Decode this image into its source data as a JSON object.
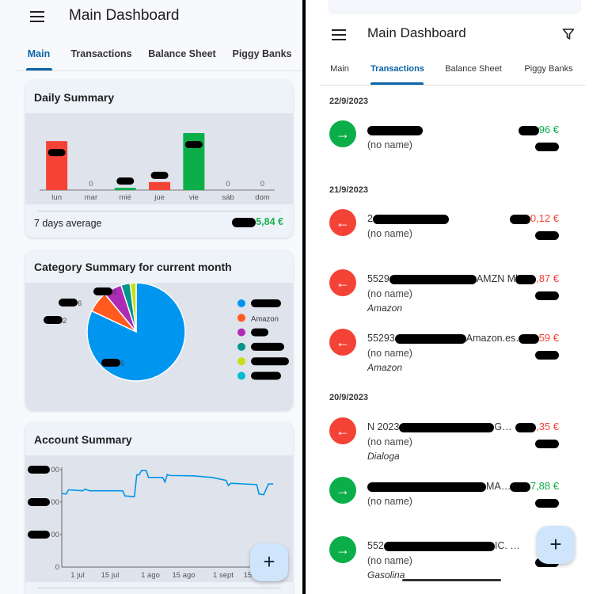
{
  "left": {
    "header": {
      "title": "Main Dashboard",
      "menu_icon": "hamburger-icon"
    },
    "tabs": [
      {
        "label": "Main",
        "active": true
      },
      {
        "label": "Transactions"
      },
      {
        "label": "Balance Sheet"
      },
      {
        "label": "Piggy Banks"
      }
    ],
    "daily_summary": {
      "title": "Daily Summary",
      "footer_label": "7 days average",
      "footer_value_visible": "5,84 €",
      "footer_color": "#1db34f"
    },
    "category_summary": {
      "title": "Category Summary for current month"
    },
    "account_summary": {
      "title": "Account Summary"
    },
    "fab_icon": "plus-icon"
  },
  "right": {
    "header": {
      "title": "Main Dashboard",
      "menu_icon": "hamburger-icon",
      "filter_icon": "filter-icon"
    },
    "tabs": [
      {
        "label": "Main"
      },
      {
        "label": "Transactions",
        "active": true
      },
      {
        "label": "Balance Sheet"
      },
      {
        "label": "Piggy Banks"
      }
    ],
    "groups": [
      {
        "date": "22/9/2023",
        "items": [
          {
            "type": "income",
            "title": "",
            "title_end": "",
            "subtitle": "(no name)",
            "amount": "96 €",
            "category": ""
          }
        ]
      },
      {
        "date": "21/9/2023",
        "items": [
          {
            "type": "expense",
            "title": "2",
            "title_end": "",
            "subtitle": "(no name)",
            "amount": "0,12 €",
            "category": ""
          },
          {
            "type": "expense",
            "title": "5529",
            "title_end": "AMZN Mk…",
            "subtitle": "(no name)",
            "amount": ",87 €",
            "category": "Amazon"
          },
          {
            "type": "expense",
            "title": "55293",
            "title_end": "Amazon.es…",
            "subtitle": "(no name)",
            "amount": "59 €",
            "category": "Amazon"
          }
        ]
      },
      {
        "date": "20/9/2023",
        "items": [
          {
            "type": "expense",
            "title": "N 2023",
            "title_end": "G…",
            "subtitle": "(no name)",
            "amount": ",35 €",
            "category": "Dialoga"
          },
          {
            "type": "income",
            "title": "",
            "title_end": "MA…",
            "subtitle": "(no name)",
            "amount": "7,88 €",
            "category": ""
          },
          {
            "type": "income",
            "title": "552",
            "title_end": "IC. …",
            "subtitle": "(no name)",
            "amount": "",
            "category": "Gasolina"
          }
        ]
      }
    ],
    "colors": {
      "income": "#0cae4a",
      "expense": "#f44336"
    },
    "fab_icon": "plus-icon"
  },
  "chart_data": [
    {
      "type": "bar",
      "title": "Daily Summary",
      "categories": [
        "lun",
        "mar",
        "mié",
        "jue",
        "vie",
        "sáb",
        "dom"
      ],
      "value_labels": [
        "",
        "0",
        "",
        "",
        "",
        "0",
        "0"
      ],
      "level_of_max": [
        0.86,
        0,
        0.04,
        0.14,
        1.0,
        0,
        0
      ],
      "colors": [
        "#f44336",
        "#f44336",
        "#0cae4a",
        "#f44336",
        "#0cae4a",
        "#f44336",
        "#f44336"
      ]
    },
    {
      "type": "pie",
      "title": "Category Summary for current month",
      "slices": [
        {
          "name": "",
          "percent": 82,
          "label": "5",
          "color": "#0096f0"
        },
        {
          "name": "Amazon",
          "percent": 7,
          "label": "2",
          "color": "#ff5a1f"
        },
        {
          "name": "",
          "percent": 6,
          "label": "6",
          "color": "#b02ab8"
        },
        {
          "name": "",
          "percent": 3,
          "label": "",
          "color": "#00968a"
        },
        {
          "name": "",
          "percent": 2,
          "label": "4",
          "color": "#c8dd18"
        },
        {
          "name": "",
          "percent": 0,
          "label": "",
          "color": "#00bcd4"
        }
      ],
      "legend": "right"
    },
    {
      "type": "line",
      "title": "Account Summary",
      "color": "#0096e6",
      "x_ticks": [
        "1 jul",
        "15 jul",
        "1 ago",
        "15 ago",
        "1 sept",
        "15"
      ],
      "y_ticks": [
        "0",
        "00",
        "00",
        "00"
      ],
      "y_unit": "gridline levels (values redacted)",
      "points": [
        [
          "2023-06-24",
          2.27
        ],
        [
          "2023-06-26",
          2.25
        ],
        [
          "2023-06-27",
          2.38
        ],
        [
          "2023-07-03",
          2.35
        ],
        [
          "2023-07-04",
          2.4
        ],
        [
          "2023-07-06",
          2.35
        ],
        [
          "2023-07-20",
          2.35
        ],
        [
          "2023-07-21",
          2.19
        ],
        [
          "2023-07-25",
          2.17
        ],
        [
          "2023-07-26",
          2.84
        ],
        [
          "2023-07-27",
          2.84
        ],
        [
          "2023-07-28",
          2.97
        ],
        [
          "2023-07-30",
          2.97
        ],
        [
          "2023-07-31",
          2.76
        ],
        [
          "2023-08-06",
          2.76
        ],
        [
          "2023-08-07",
          2.62
        ],
        [
          "2023-08-08",
          2.85
        ],
        [
          "2023-08-09",
          2.82
        ],
        [
          "2023-08-19",
          2.81
        ],
        [
          "2023-08-27",
          2.76
        ],
        [
          "2023-09-02",
          2.67
        ],
        [
          "2023-09-03",
          2.51
        ],
        [
          "2023-09-04",
          2.58
        ],
        [
          "2023-09-15",
          2.54
        ],
        [
          "2023-09-16",
          2.25
        ],
        [
          "2023-09-18",
          2.23
        ],
        [
          "2023-09-20",
          2.56
        ],
        [
          "2023-09-22",
          2.56
        ]
      ]
    }
  ]
}
